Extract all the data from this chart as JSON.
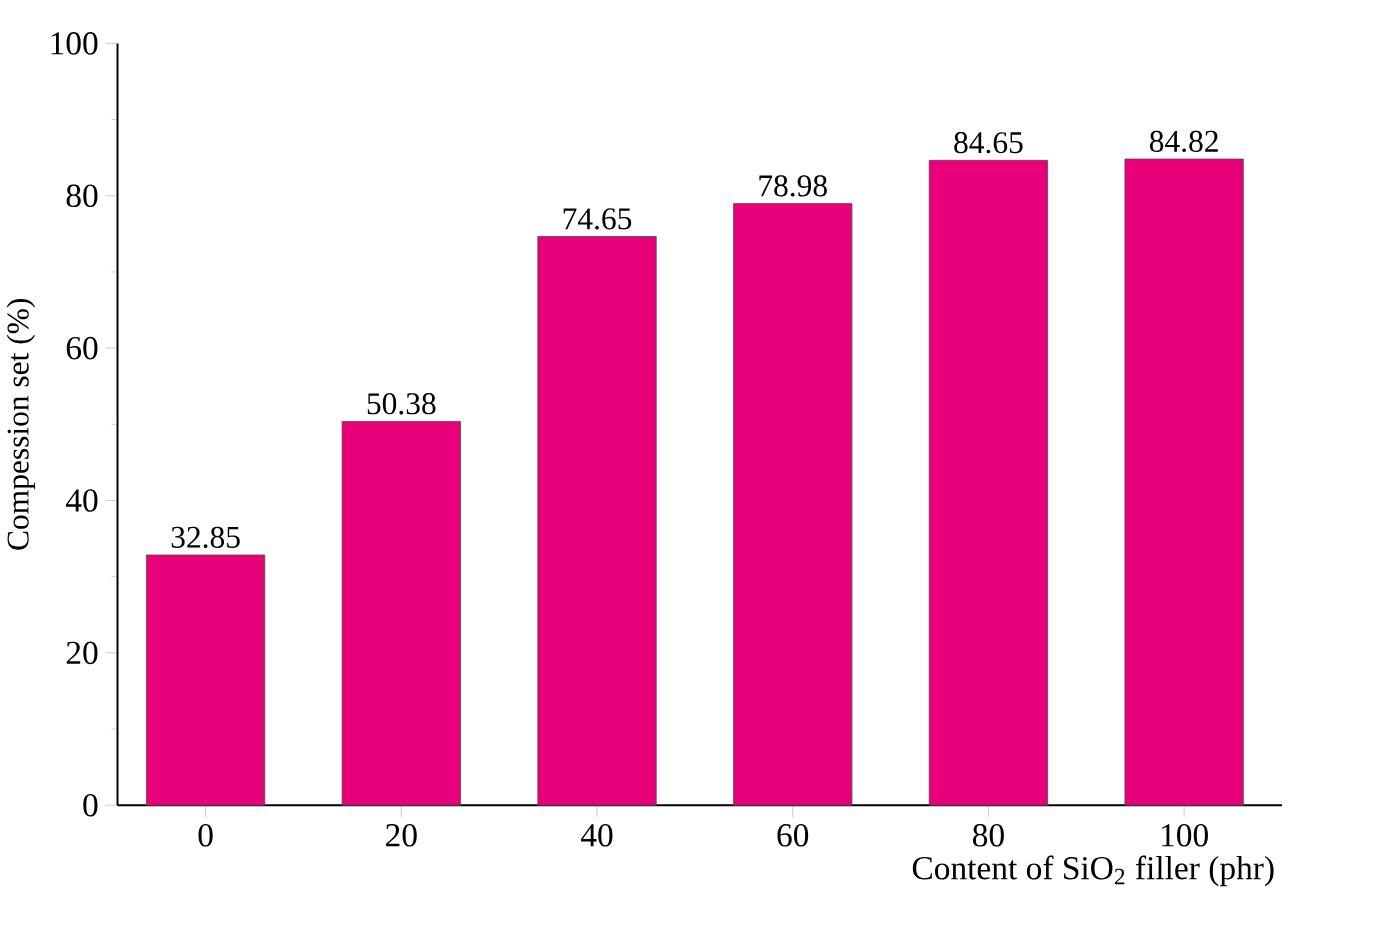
{
  "chart_data": {
    "type": "bar",
    "xlabel": "Content of SiO$_{2}$ filler (phr)",
    "ylabel": "Compession set (%)",
    "categories": [
      "0",
      "20",
      "40",
      "60",
      "80",
      "100"
    ],
    "values": [
      32.85,
      50.38,
      74.65,
      78.98,
      84.65,
      84.82
    ],
    "color": "#e8007a",
    "ylim": [
      0,
      100
    ],
    "yticks": [
      0,
      20,
      40,
      60,
      80,
      100
    ],
    "data_labels": true
  }
}
